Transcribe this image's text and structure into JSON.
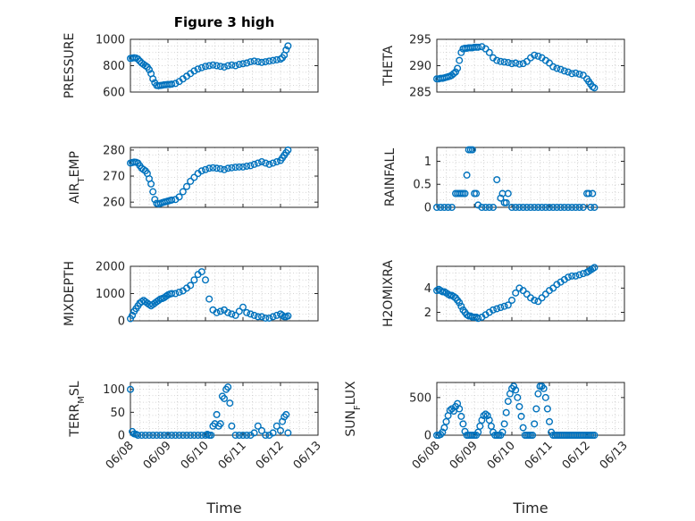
{
  "chart_data": [
    {
      "type": "scatter",
      "title": "Figure 3 high",
      "ylabel": "PRESSURE",
      "ylim": [
        600,
        1000
      ],
      "yticks": [
        600,
        800,
        1000
      ],
      "xlim": [
        0,
        5
      ],
      "color": "#0072bd",
      "grid": true,
      "series": [
        {
          "x": [
            0.0,
            0.05,
            0.1,
            0.15,
            0.2,
            0.25,
            0.3,
            0.35,
            0.4,
            0.45,
            0.5,
            0.55,
            0.6,
            0.65,
            0.7,
            0.75,
            0.8,
            0.85,
            0.9,
            0.95,
            1.0,
            1.05,
            1.1,
            1.2,
            1.3,
            1.4,
            1.5,
            1.6,
            1.7,
            1.8,
            1.9,
            2.0,
            2.1,
            2.2,
            2.3,
            2.4,
            2.5,
            2.6,
            2.7,
            2.8,
            2.9,
            3.0,
            3.1,
            3.2,
            3.3,
            3.4,
            3.5,
            3.6,
            3.7,
            3.8,
            3.9,
            4.0,
            4.05,
            4.1,
            4.15,
            4.2
          ],
          "y": [
            855,
            858,
            860,
            858,
            850,
            835,
            820,
            810,
            800,
            790,
            770,
            740,
            700,
            670,
            650,
            648,
            650,
            652,
            655,
            656,
            658,
            658,
            660,
            665,
            680,
            700,
            720,
            740,
            760,
            775,
            785,
            795,
            800,
            805,
            800,
            795,
            790,
            800,
            805,
            800,
            810,
            815,
            820,
            830,
            835,
            830,
            825,
            830,
            835,
            840,
            845,
            850,
            860,
            880,
            920,
            950
          ]
        }
      ]
    },
    {
      "type": "scatter",
      "title": "",
      "ylabel": "THETA",
      "ylim": [
        285,
        295
      ],
      "yticks": [
        285,
        290,
        295
      ],
      "xlim": [
        0,
        5
      ],
      "color": "#0072bd",
      "grid": true,
      "series": [
        {
          "x": [
            0.0,
            0.05,
            0.1,
            0.15,
            0.2,
            0.25,
            0.3,
            0.35,
            0.4,
            0.45,
            0.5,
            0.55,
            0.6,
            0.65,
            0.7,
            0.75,
            0.8,
            0.85,
            0.9,
            0.95,
            1.0,
            1.05,
            1.1,
            1.2,
            1.3,
            1.4,
            1.5,
            1.6,
            1.7,
            1.8,
            1.9,
            2.0,
            2.1,
            2.2,
            2.3,
            2.4,
            2.5,
            2.6,
            2.7,
            2.8,
            2.9,
            3.0,
            3.1,
            3.2,
            3.3,
            3.4,
            3.5,
            3.6,
            3.7,
            3.8,
            3.9,
            4.0,
            4.05,
            4.1,
            4.15,
            4.2
          ],
          "y": [
            287.5,
            287.5,
            287.6,
            287.6,
            287.7,
            287.8,
            287.9,
            288.0,
            288.2,
            288.5,
            288.8,
            289.5,
            291.0,
            292.5,
            293.2,
            293.3,
            293.3,
            293.4,
            293.4,
            293.4,
            293.5,
            293.5,
            293.5,
            293.6,
            293.2,
            292.5,
            291.5,
            291.0,
            290.8,
            290.7,
            290.6,
            290.4,
            290.5,
            290.3,
            290.4,
            290.8,
            291.5,
            292.0,
            291.8,
            291.5,
            291.0,
            290.5,
            289.8,
            289.5,
            289.3,
            289.0,
            288.8,
            288.5,
            288.6,
            288.4,
            288.2,
            287.5,
            287.0,
            286.5,
            286.0,
            285.8
          ]
        }
      ]
    },
    {
      "type": "scatter",
      "title": "",
      "ylabel": "AIR_TEMP",
      "ylim": [
        258,
        281
      ],
      "yticks": [
        260,
        270,
        280
      ],
      "xlim": [
        0,
        5
      ],
      "color": "#0072bd",
      "grid": true,
      "series": [
        {
          "x": [
            0.0,
            0.05,
            0.1,
            0.15,
            0.2,
            0.25,
            0.3,
            0.35,
            0.4,
            0.45,
            0.5,
            0.55,
            0.6,
            0.65,
            0.7,
            0.75,
            0.8,
            0.85,
            0.9,
            0.95,
            1.0,
            1.05,
            1.1,
            1.2,
            1.3,
            1.4,
            1.5,
            1.6,
            1.7,
            1.8,
            1.9,
            2.0,
            2.1,
            2.2,
            2.3,
            2.4,
            2.5,
            2.6,
            2.7,
            2.8,
            2.9,
            3.0,
            3.1,
            3.2,
            3.3,
            3.4,
            3.5,
            3.6,
            3.7,
            3.8,
            3.9,
            4.0,
            4.05,
            4.1,
            4.15,
            4.2
          ],
          "y": [
            275,
            275.2,
            275.4,
            275.3,
            275,
            274,
            273,
            272.5,
            272,
            271,
            269,
            267,
            264,
            261,
            259.5,
            259.3,
            259.5,
            259.8,
            260,
            260.2,
            260.4,
            260.6,
            260.8,
            261,
            262,
            264,
            266,
            268,
            269.5,
            271,
            272,
            272.5,
            273,
            273.2,
            273,
            272.8,
            272.5,
            273,
            273.2,
            273.4,
            273.5,
            273.5,
            273.8,
            274,
            274.5,
            275,
            275.5,
            275,
            274.5,
            275,
            275.5,
            276,
            277,
            278,
            279,
            280
          ]
        }
      ]
    },
    {
      "type": "scatter",
      "title": "",
      "ylabel": "RAINFALL",
      "ylim": [
        0,
        1.3
      ],
      "yticks": [
        0,
        0.5,
        1
      ],
      "xlim": [
        0,
        5
      ],
      "color": "#0072bd",
      "grid": true,
      "series": [
        {
          "x": [
            0.0,
            0.1,
            0.2,
            0.3,
            0.4,
            0.5,
            0.55,
            0.6,
            0.65,
            0.7,
            0.75,
            0.8,
            0.85,
            0.9,
            0.95,
            1.0,
            1.05,
            1.1,
            1.2,
            1.3,
            1.4,
            1.5,
            1.6,
            1.7,
            1.75,
            1.8,
            1.85,
            1.9,
            2.0,
            2.1,
            2.2,
            2.3,
            2.4,
            2.5,
            2.6,
            2.7,
            2.8,
            2.9,
            3.0,
            3.1,
            3.2,
            3.3,
            3.4,
            3.5,
            3.6,
            3.7,
            3.8,
            3.9,
            4.0,
            4.05,
            4.1,
            4.15,
            4.2
          ],
          "y": [
            0,
            0,
            0,
            0,
            0,
            0.3,
            0.3,
            0.3,
            0.3,
            0.3,
            0.3,
            0.7,
            1.25,
            1.25,
            1.25,
            0.3,
            0.3,
            0.05,
            0,
            0,
            0,
            0,
            0.6,
            0.2,
            0.3,
            0.1,
            0.1,
            0.3,
            0,
            0,
            0,
            0,
            0,
            0,
            0,
            0,
            0,
            0,
            0,
            0,
            0,
            0,
            0,
            0,
            0,
            0,
            0,
            0,
            0.3,
            0.3,
            0,
            0.3,
            0
          ]
        }
      ]
    },
    {
      "type": "scatter",
      "title": "",
      "ylabel": "MIXDEPTH",
      "ylim": [
        0,
        2000
      ],
      "yticks": [
        0,
        1000,
        2000
      ],
      "xlim": [
        0,
        5
      ],
      "color": "#0072bd",
      "grid": true,
      "series": [
        {
          "x": [
            0.0,
            0.05,
            0.1,
            0.15,
            0.2,
            0.25,
            0.3,
            0.35,
            0.4,
            0.45,
            0.5,
            0.55,
            0.6,
            0.65,
            0.7,
            0.75,
            0.8,
            0.85,
            0.9,
            0.95,
            1.0,
            1.05,
            1.1,
            1.2,
            1.3,
            1.4,
            1.5,
            1.6,
            1.7,
            1.8,
            1.9,
            2.0,
            2.1,
            2.2,
            2.3,
            2.4,
            2.5,
            2.6,
            2.7,
            2.8,
            2.9,
            3.0,
            3.1,
            3.2,
            3.3,
            3.4,
            3.5,
            3.6,
            3.7,
            3.8,
            3.9,
            4.0,
            4.05,
            4.1,
            4.15,
            4.2
          ],
          "y": [
            80,
            200,
            350,
            450,
            550,
            650,
            700,
            750,
            700,
            650,
            600,
            550,
            600,
            650,
            700,
            750,
            800,
            820,
            850,
            900,
            950,
            980,
            1000,
            1000,
            1050,
            1100,
            1200,
            1300,
            1500,
            1700,
            1800,
            1500,
            800,
            400,
            300,
            350,
            400,
            300,
            250,
            200,
            350,
            500,
            300,
            250,
            200,
            150,
            150,
            100,
            100,
            150,
            200,
            250,
            200,
            150,
            150,
            180
          ]
        }
      ]
    },
    {
      "type": "scatter",
      "title": "",
      "ylabel": "H2OMIXRA",
      "ylim": [
        1.3,
        5.8
      ],
      "yticks": [
        2,
        4
      ],
      "xlim": [
        0,
        5
      ],
      "color": "#0072bd",
      "grid": true,
      "series": [
        {
          "x": [
            0.0,
            0.05,
            0.1,
            0.15,
            0.2,
            0.25,
            0.3,
            0.35,
            0.4,
            0.45,
            0.5,
            0.55,
            0.6,
            0.65,
            0.7,
            0.75,
            0.8,
            0.85,
            0.9,
            0.95,
            1.0,
            1.05,
            1.1,
            1.2,
            1.3,
            1.4,
            1.5,
            1.6,
            1.7,
            1.8,
            1.9,
            2.0,
            2.1,
            2.2,
            2.3,
            2.4,
            2.5,
            2.6,
            2.7,
            2.8,
            2.9,
            3.0,
            3.1,
            3.2,
            3.3,
            3.4,
            3.5,
            3.6,
            3.7,
            3.8,
            3.9,
            4.0,
            4.05,
            4.1,
            4.15,
            4.2
          ],
          "y": [
            3.8,
            3.9,
            3.8,
            3.7,
            3.7,
            3.6,
            3.5,
            3.4,
            3.4,
            3.3,
            3.2,
            3.0,
            2.8,
            2.5,
            2.2,
            2.0,
            1.8,
            1.7,
            1.7,
            1.6,
            1.6,
            1.6,
            1.5,
            1.6,
            1.8,
            2.0,
            2.2,
            2.3,
            2.4,
            2.5,
            2.6,
            3.0,
            3.6,
            4.0,
            3.8,
            3.5,
            3.2,
            3.0,
            2.9,
            3.2,
            3.5,
            3.8,
            4.0,
            4.3,
            4.5,
            4.7,
            4.9,
            5.0,
            5.0,
            5.1,
            5.2,
            5.3,
            5.4,
            5.5,
            5.6,
            5.7
          ]
        }
      ]
    },
    {
      "type": "scatter",
      "title": "",
      "ylabel": "TERR_MSL",
      "ylim": [
        0,
        115
      ],
      "yticks": [
        0,
        50,
        100
      ],
      "xlim": [
        0,
        5
      ],
      "xticks": [
        "06/08",
        "06/09",
        "06/10",
        "06/11",
        "06/12",
        "06/13"
      ],
      "xlabel": "Time",
      "color": "#0072bd",
      "grid": true,
      "series": [
        {
          "x": [
            0.0,
            0.05,
            0.1,
            0.15,
            0.2,
            0.3,
            0.4,
            0.5,
            0.6,
            0.7,
            0.8,
            0.9,
            1.0,
            1.1,
            1.2,
            1.3,
            1.4,
            1.5,
            1.6,
            1.7,
            1.8,
            1.9,
            2.0,
            2.05,
            2.1,
            2.15,
            2.2,
            2.25,
            2.3,
            2.35,
            2.4,
            2.45,
            2.5,
            2.55,
            2.6,
            2.65,
            2.7,
            2.8,
            2.9,
            3.0,
            3.1,
            3.2,
            3.3,
            3.4,
            3.5,
            3.6,
            3.7,
            3.8,
            3.9,
            4.0,
            4.05,
            4.1,
            4.15,
            4.2
          ],
          "y": [
            100,
            8,
            3,
            2,
            0,
            0,
            0,
            0,
            0,
            0,
            0,
            0,
            0,
            0,
            0,
            0,
            0,
            0,
            0,
            0,
            0,
            0,
            0,
            2,
            0,
            0,
            20,
            25,
            45,
            20,
            25,
            85,
            80,
            100,
            105,
            70,
            20,
            0,
            0,
            0,
            0,
            0,
            5,
            20,
            10,
            0,
            0,
            5,
            20,
            10,
            30,
            40,
            45,
            5
          ]
        }
      ]
    },
    {
      "type": "scatter",
      "title": "",
      "ylabel": "SUN_FLUX",
      "ylim": [
        0,
        700
      ],
      "yticks": [
        0,
        500
      ],
      "xlim": [
        0,
        5
      ],
      "xticks": [
        "06/08",
        "06/09",
        "06/10",
        "06/11",
        "06/12",
        "06/13"
      ],
      "xlabel": "Time",
      "color": "#0072bd",
      "grid": true,
      "series": [
        {
          "x": [
            0.0,
            0.05,
            0.1,
            0.15,
            0.2,
            0.25,
            0.3,
            0.35,
            0.4,
            0.45,
            0.5,
            0.55,
            0.6,
            0.65,
            0.7,
            0.75,
            0.8,
            0.85,
            0.9,
            0.95,
            1.0,
            1.05,
            1.1,
            1.15,
            1.2,
            1.25,
            1.3,
            1.35,
            1.4,
            1.45,
            1.5,
            1.55,
            1.6,
            1.65,
            1.7,
            1.75,
            1.8,
            1.85,
            1.9,
            1.95,
            2.0,
            2.05,
            2.1,
            2.15,
            2.2,
            2.25,
            2.3,
            2.35,
            2.4,
            2.45,
            2.5,
            2.55,
            2.6,
            2.65,
            2.7,
            2.75,
            2.8,
            2.85,
            2.9,
            2.95,
            3.0,
            3.05,
            3.1,
            3.15,
            3.2,
            3.25,
            3.3,
            3.35,
            3.4,
            3.45,
            3.5,
            3.55,
            3.6,
            3.65,
            3.7,
            3.75,
            3.8,
            3.85,
            3.9,
            3.95,
            4.0,
            4.05,
            4.1,
            4.15,
            4.2
          ],
          "y": [
            0,
            0,
            10,
            40,
            100,
            180,
            260,
            330,
            350,
            320,
            380,
            420,
            350,
            250,
            150,
            50,
            0,
            0,
            0,
            0,
            0,
            0,
            40,
            120,
            200,
            260,
            280,
            260,
            200,
            120,
            40,
            0,
            0,
            0,
            0,
            40,
            150,
            300,
            450,
            550,
            620,
            650,
            600,
            500,
            380,
            250,
            100,
            0,
            0,
            0,
            0,
            0,
            150,
            350,
            550,
            650,
            650,
            620,
            500,
            350,
            180,
            40,
            0,
            0,
            0,
            0,
            0,
            0,
            0,
            0,
            0,
            0,
            0,
            0,
            0,
            0,
            0,
            0,
            0,
            0,
            0,
            0,
            0,
            0,
            0
          ]
        }
      ]
    }
  ]
}
